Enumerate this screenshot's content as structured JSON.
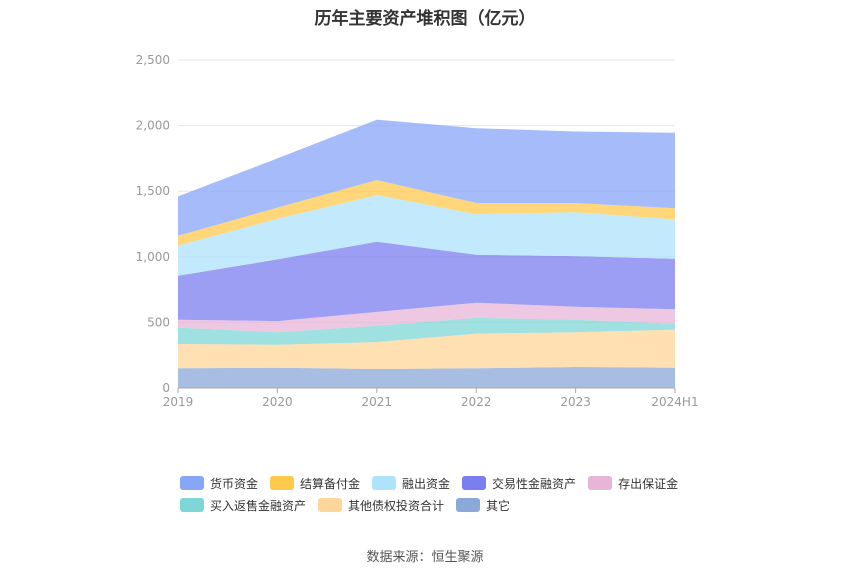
{
  "title": "历年主要资产堆积图（亿元）",
  "source": "数据来源：恒生聚源",
  "chart_data": {
    "type": "area",
    "stacked": true,
    "x": [
      "2019",
      "2020",
      "2021",
      "2022",
      "2023",
      "2024H1"
    ],
    "ylim": [
      0,
      2500
    ],
    "yticks": [
      "0",
      "500",
      "1,000",
      "1,500",
      "2,000",
      "2,500"
    ],
    "ytick_values": [
      0,
      500,
      1000,
      1500,
      2000,
      2500
    ],
    "grid": true,
    "legend_position": "bottom",
    "series": [
      {
        "name": "其它",
        "color": "#8aa8d8",
        "values": [
          150,
          155,
          145,
          150,
          160,
          155
        ]
      },
      {
        "name": "其他债权投资合计",
        "color": "#ffd699",
        "values": [
          185,
          175,
          205,
          265,
          265,
          290
        ]
      },
      {
        "name": "买入返售金融资产",
        "color": "#7fd6d6",
        "values": [
          125,
          95,
          125,
          120,
          95,
          45
        ]
      },
      {
        "name": "存出保证金",
        "color": "#e8b4d8",
        "values": [
          60,
          85,
          105,
          115,
          100,
          110
        ]
      },
      {
        "name": "交易性金融资产",
        "color": "#7b7ef0",
        "values": [
          335,
          470,
          535,
          365,
          385,
          385
        ]
      },
      {
        "name": "融出资金",
        "color": "#aee3fb",
        "values": [
          230,
          310,
          355,
          310,
          335,
          300
        ]
      },
      {
        "name": "结算备付金",
        "color": "#ffc94d",
        "values": [
          75,
          85,
          115,
          85,
          70,
          85
        ]
      },
      {
        "name": "货币资金",
        "color": "#88a6f8",
        "values": [
          300,
          375,
          460,
          570,
          545,
          575
        ]
      }
    ]
  },
  "legend": {
    "row1": [
      {
        "label": "货币资金",
        "color": "#88a6f8"
      },
      {
        "label": "结算备付金",
        "color": "#ffc94d"
      },
      {
        "label": "融出资金",
        "color": "#aee3fb"
      },
      {
        "label": "交易性金融资产",
        "color": "#7b7ef0"
      },
      {
        "label": "存出保证金",
        "color": "#e8b4d8"
      }
    ],
    "row2": [
      {
        "label": "买入返售金融资产",
        "color": "#7fd6d6"
      },
      {
        "label": "其他债权投资合计",
        "color": "#ffd699"
      },
      {
        "label": "其它",
        "color": "#8aa8d8"
      }
    ]
  }
}
